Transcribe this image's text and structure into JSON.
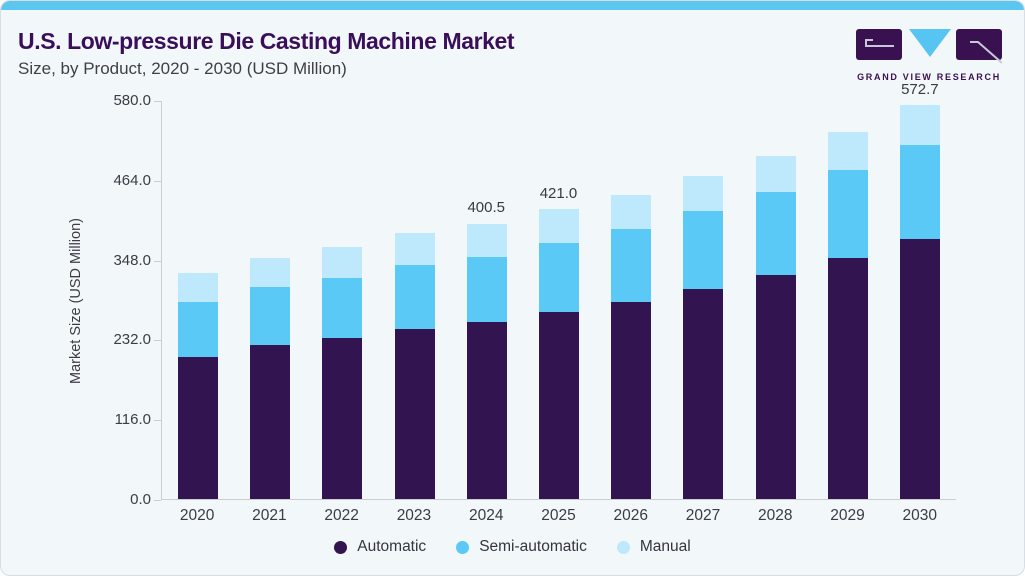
{
  "header": {
    "title": "U.S. Low-pressure Die Casting Machine Market",
    "subtitle": "Size, by Product, 2020 - 2030 (USD Million)"
  },
  "logo": {
    "company": "Grand View Research",
    "text": "GRAND VIEW RESEARCH"
  },
  "colors": {
    "top_strip": "#5bc7f1",
    "card_background": "#f2f7fa",
    "title_purple": "#3a0f5a",
    "subtitle_gray": "#3f3f46",
    "axis_gray": "#c9ced4",
    "logo_purple": "#3a1150",
    "logo_blue": "#56c5f2",
    "automatic": "#321450",
    "semi_automatic": "#5bc9f5",
    "manual": "#bee8fb"
  },
  "chart_data": {
    "type": "bar",
    "stacked": true,
    "title": "U.S. Low-pressure Die Casting Machine Market Size, by Product, 2020 - 2030 (USD Million)",
    "categories": [
      "2020",
      "2021",
      "2022",
      "2023",
      "2024",
      "2025",
      "2026",
      "2027",
      "2028",
      "2029",
      "2030"
    ],
    "series": [
      {
        "name": "Automatic",
        "color": "#321450",
        "values": [
          206,
          224,
          234,
          247,
          257.0,
          272,
          287,
          306,
          325,
          350,
          378.5
        ]
      },
      {
        "name": "Semi-automatic",
        "color": "#5bc9f5",
        "values": [
          80,
          84,
          87,
          93,
          95.0,
          100,
          106,
          113,
          121,
          128,
          136.8
        ]
      },
      {
        "name": "Manual",
        "color": "#bee8fb",
        "values": [
          42,
          43,
          45,
          46,
          48.5,
          49,
          49,
          51,
          53,
          55,
          57.4
        ]
      }
    ],
    "totals_labeled": {
      "2024": "400.5",
      "2025": "421.0",
      "2030": "572.7"
    },
    "xlabel": "",
    "ylabel": "Market Size (USD Million)",
    "ylim": [
      0,
      580
    ],
    "yticks": [
      {
        "value": 0,
        "label": "0.0"
      },
      {
        "value": 116,
        "label": "116.0"
      },
      {
        "value": 232,
        "label": "232.0"
      },
      {
        "value": 348,
        "label": "348.0"
      },
      {
        "value": 464,
        "label": "464.0"
      },
      {
        "value": 580,
        "label": "580.0"
      }
    ],
    "grid": false,
    "legend_position": "bottom",
    "legend": [
      "Automatic",
      "Semi-automatic",
      "Manual"
    ]
  }
}
